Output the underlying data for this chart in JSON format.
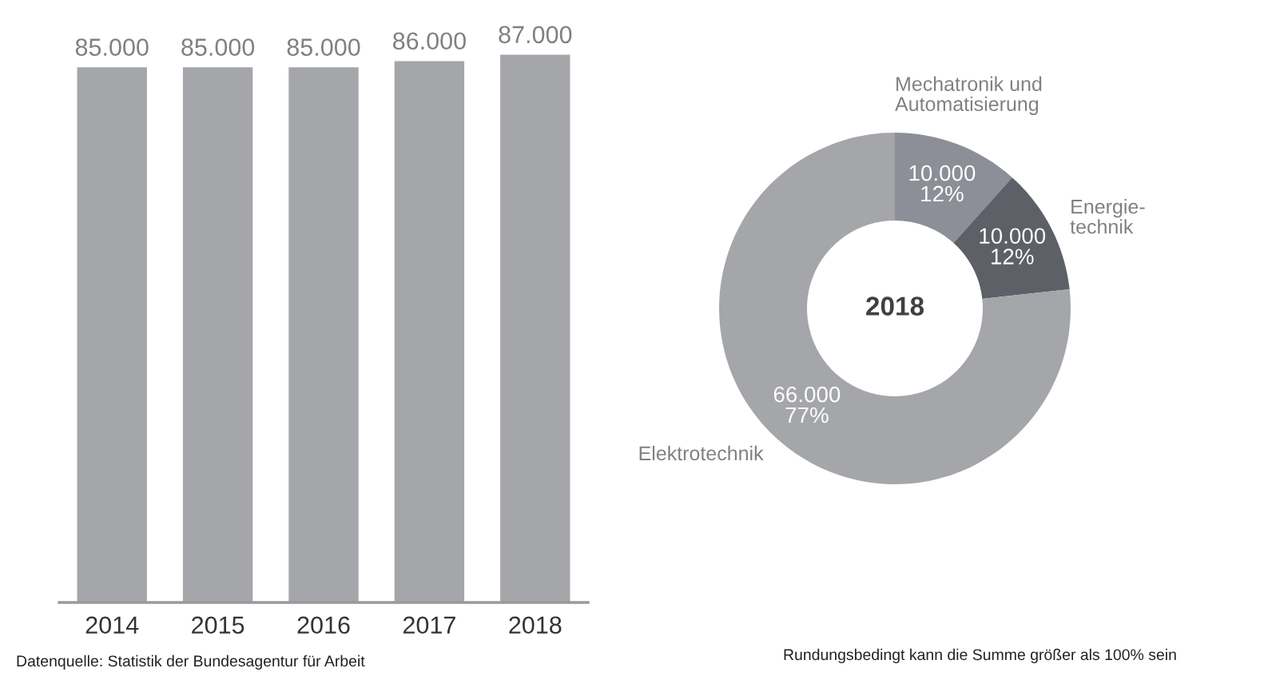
{
  "chart_data": [
    {
      "type": "bar",
      "categories": [
        "2014",
        "2015",
        "2016",
        "2017",
        "2018"
      ],
      "values": [
        85000,
        85000,
        85000,
        86000,
        87000
      ],
      "color": "#a5a6a9",
      "value_labels": [
        "85.000",
        "85.000",
        "85.000",
        "86.000",
        "87.000"
      ],
      "annotations": [
        "Datenquelle: Statistik der Bundesagentur für Arbeit"
      ]
    },
    {
      "type": "donut",
      "title": "2018",
      "categories": [
        "Mechatronik und\nAutomatisierung",
        "Energie-\ntechnik",
        "Elektrotechnik"
      ],
      "values": [
        10000,
        10000,
        66000
      ],
      "colors": [
        "#8c8f97",
        "#5e6068",
        "#a5a6a9"
      ],
      "value_labels": [
        "10.000\n12%",
        "10.000\n12%",
        "66.000\n77%"
      ],
      "annotations": [
        "Rundungsbedingt kann die Summe größer als 100% sein"
      ]
    }
  ]
}
